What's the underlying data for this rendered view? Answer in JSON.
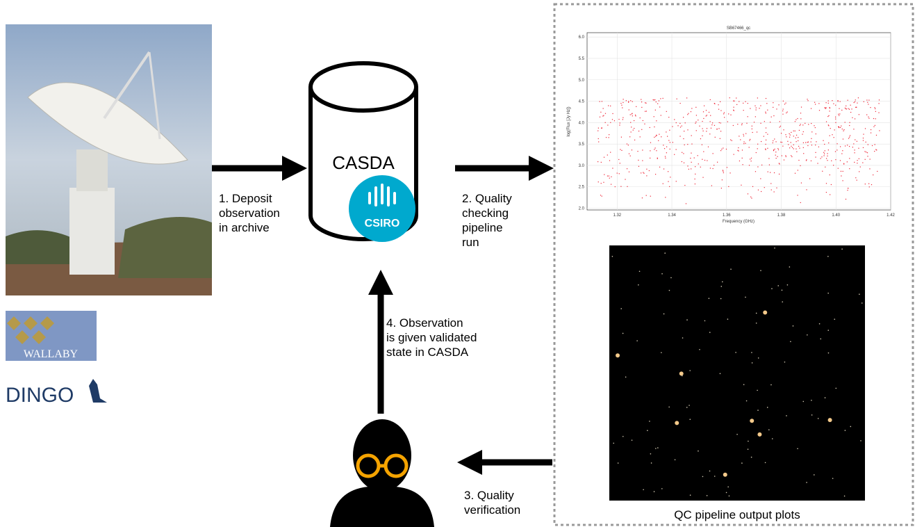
{
  "steps": {
    "deposit": [
      "1. Deposit",
      "observation",
      "in archive"
    ],
    "quality_check": [
      "2. Quality",
      "checking",
      "pipeline",
      "run"
    ],
    "verification": [
      "3. Quality",
      "verification"
    ],
    "validated": [
      "4. Observation",
      "is given validated",
      "state in CASDA"
    ]
  },
  "archive": {
    "name": "CASDA",
    "logo": "CSIRO"
  },
  "logos": {
    "wallaby": "WALLABY",
    "dingo": "DINGO"
  },
  "caption": "QC pipeline output plots",
  "qc_plot": {
    "title": "SB67466_qc",
    "xlabel": "Frequency (GHz)",
    "ylabel": "log(Flux [Jy Hz])",
    "xlim": [
      1.309,
      1.42
    ],
    "ylim": [
      1.96,
      6.1
    ],
    "xticks": [
      {
        "value": 1.32,
        "label": "1.32"
      },
      {
        "value": 1.34,
        "label": "1.34"
      },
      {
        "value": 1.36,
        "label": "1.36"
      },
      {
        "value": 1.38,
        "label": "1.38"
      },
      {
        "value": 1.4,
        "label": "1.40"
      },
      {
        "value": 1.42,
        "label": "1.42"
      }
    ],
    "yticks": [
      {
        "value": 2,
        "label": "2.0"
      },
      {
        "value": 2.5,
        "label": "2.5"
      },
      {
        "value": 3,
        "label": "3.0"
      },
      {
        "value": 3.5,
        "label": "3.5"
      },
      {
        "value": 4,
        "label": "4.0"
      },
      {
        "value": 4.5,
        "label": "4.5"
      },
      {
        "value": 5,
        "label": "5.0"
      },
      {
        "value": 5.5,
        "label": "5.5"
      },
      {
        "value": 6,
        "label": "6.0"
      }
    ]
  }
}
